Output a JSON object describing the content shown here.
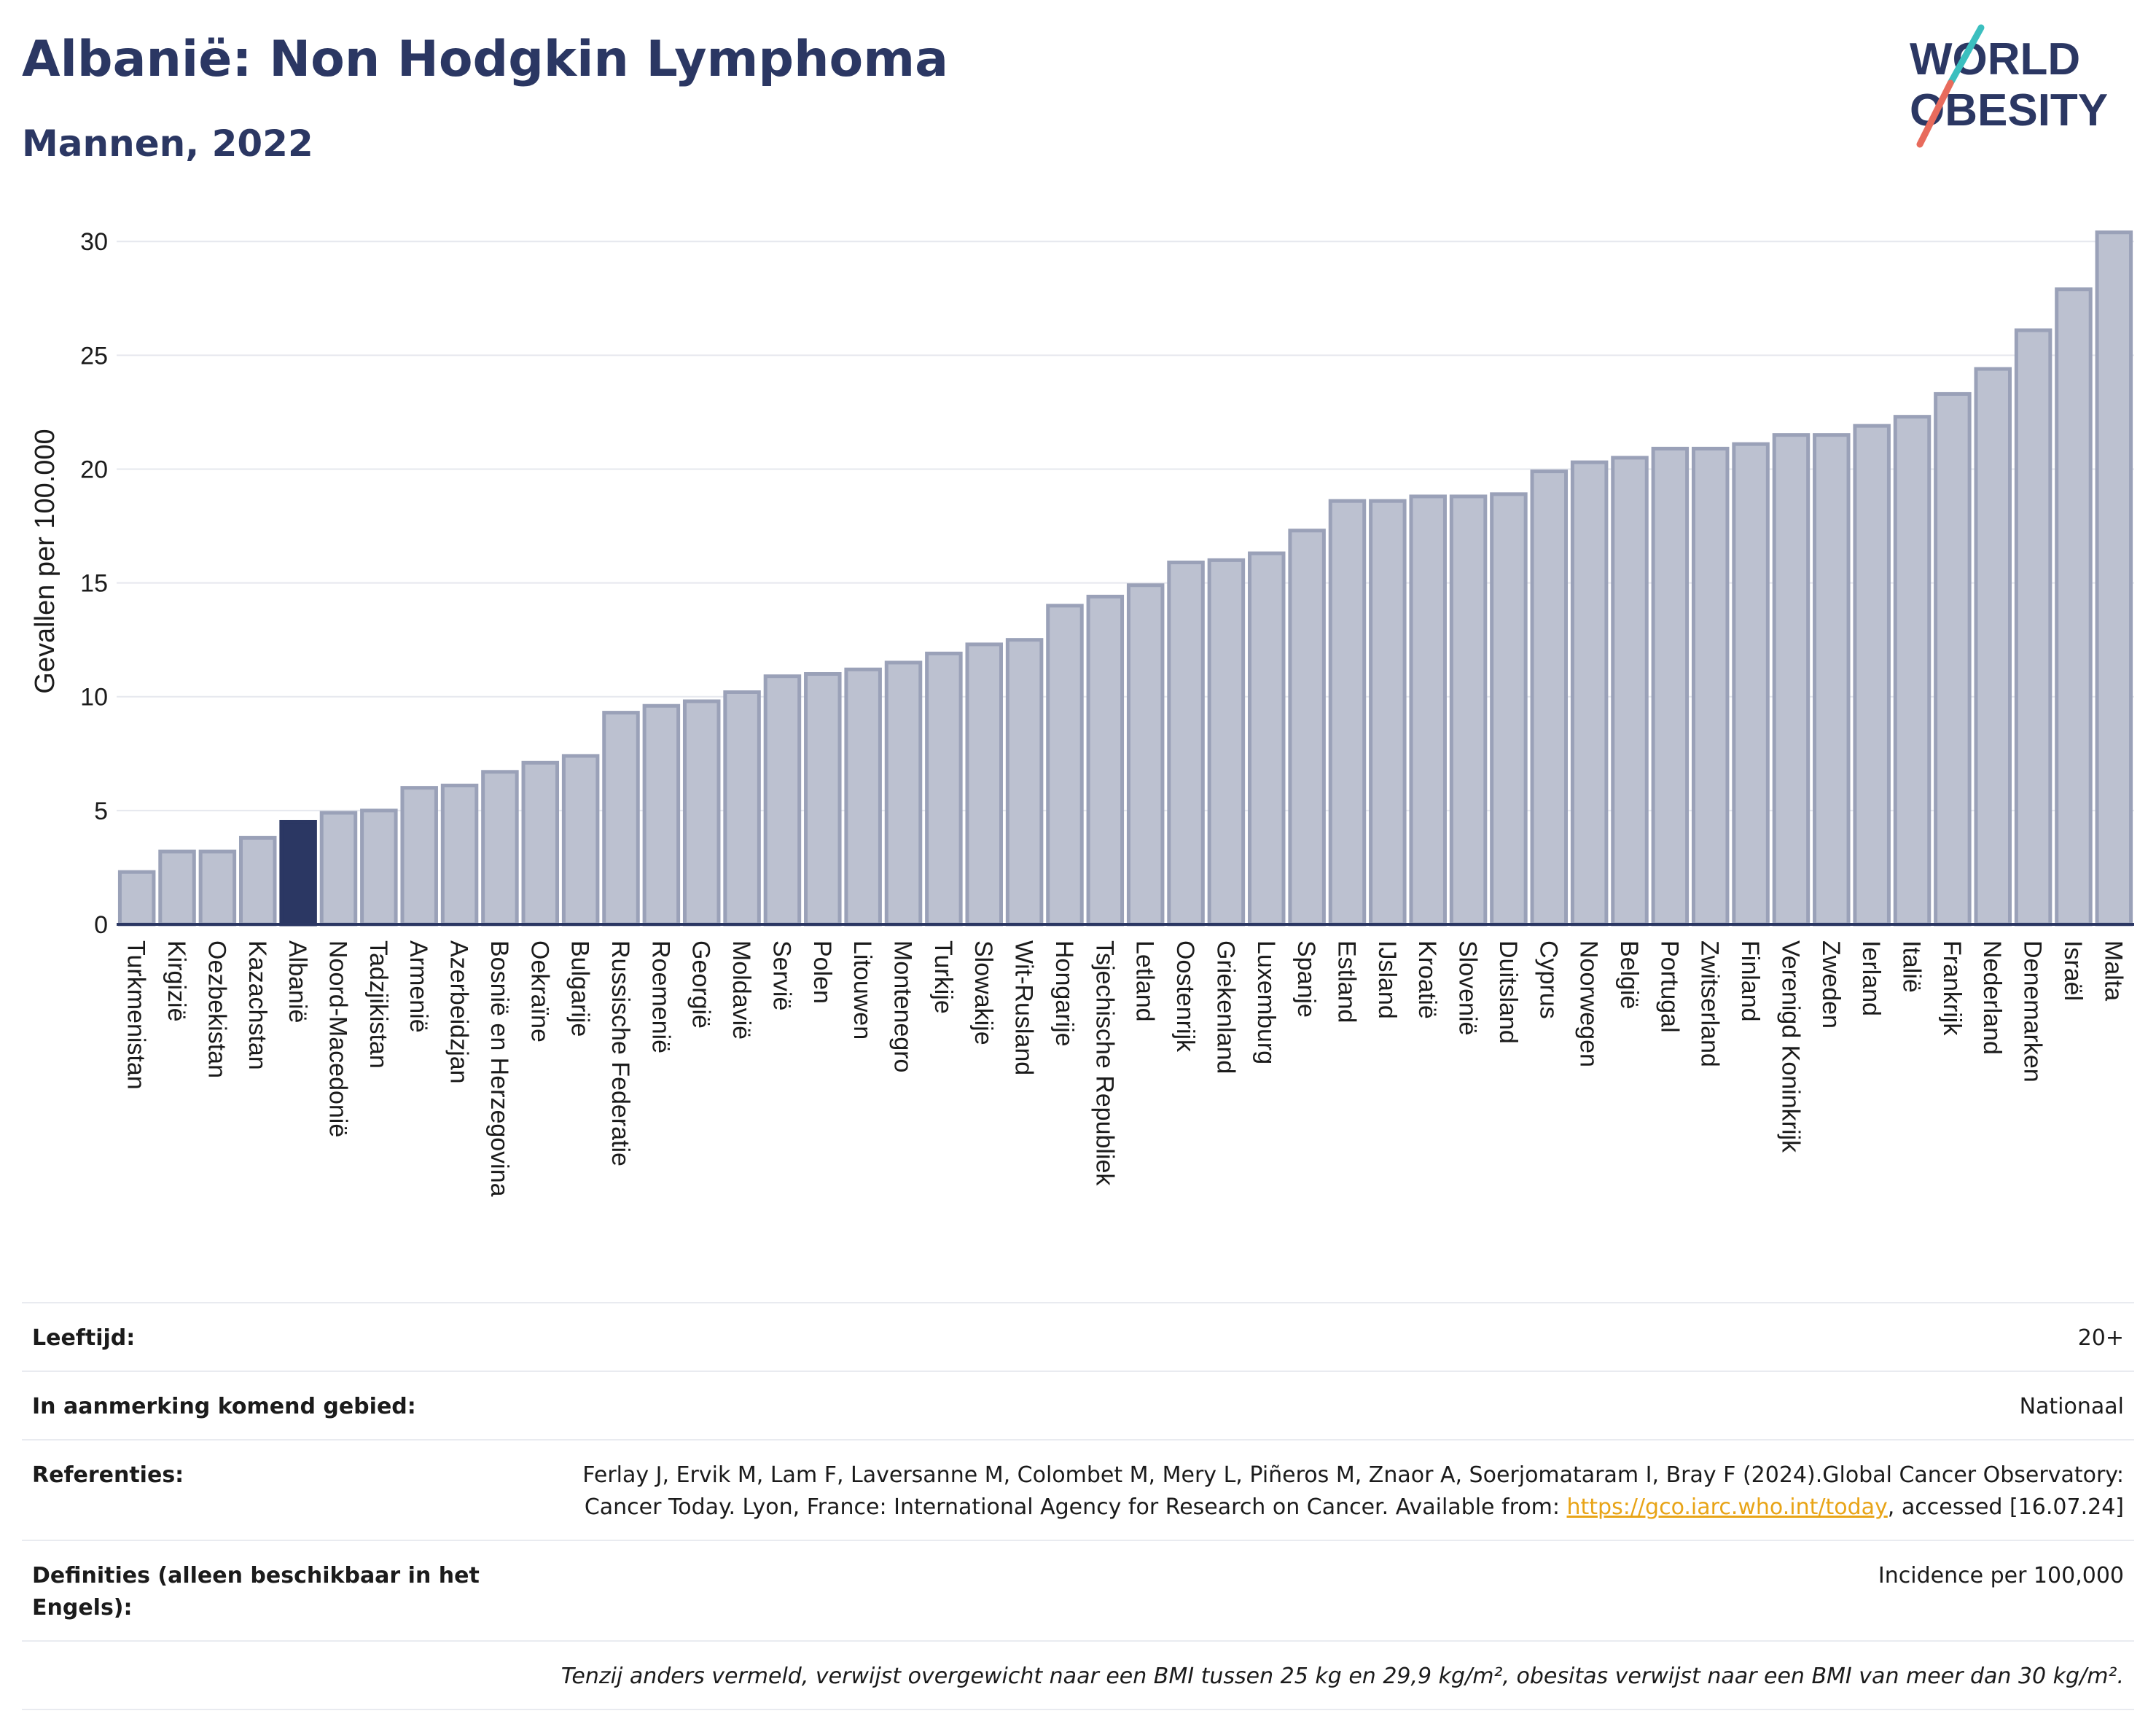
{
  "title": "Albanië: Non Hodgkin Lymphoma",
  "subtitle": "Mannen, 2022",
  "logo": {
    "line1": "WORLD",
    "line2": "OBESITY"
  },
  "colors": {
    "bar": "#bcc1d0",
    "bar_stroke": "#9aa1b8",
    "highlight": "#2b3763",
    "axis": "#2b3763",
    "grid": "#e6e8ee"
  },
  "chart_data": {
    "type": "bar",
    "title": "Albanië: Non Hodgkin Lymphoma",
    "subtitle": "Mannen, 2022",
    "ylabel": "Gevallen per 100.000",
    "xlabel": "",
    "ylim": [
      0,
      31
    ],
    "yticks": [
      0,
      5,
      10,
      15,
      20,
      25,
      30
    ],
    "grid": true,
    "highlight": "Albanië",
    "categories": [
      "Turkmenistan",
      "Kirgizië",
      "Oezbekistan",
      "Kazachstan",
      "Albanië",
      "Noord-Macedonië",
      "Tadzjikistan",
      "Armenië",
      "Azerbeidzjan",
      "Bosnië en Herzegovina",
      "Oekraïne",
      "Bulgarije",
      "Russische Federatie",
      "Roemenië",
      "Georgië",
      "Moldavië",
      "Servië",
      "Polen",
      "Litouwen",
      "Montenegro",
      "Turkije",
      "Slowakije",
      "Wit-Rusland",
      "Hongarije",
      "Tsjechische Republiek",
      "Letland",
      "Oostenrijk",
      "Griekenland",
      "Luxemburg",
      "Spanje",
      "Estland",
      "IJsland",
      "Kroatië",
      "Slovenië",
      "Duitsland",
      "Cyprus",
      "Noorwegen",
      "België",
      "Portugal",
      "Zwitserland",
      "Finland",
      "Verenigd Koninkrijk",
      "Zweden",
      "Ierland",
      "Italië",
      "Frankrijk",
      "Nederland",
      "Denemarken",
      "Israël",
      "Malta"
    ],
    "values": [
      2.3,
      3.2,
      3.2,
      3.8,
      4.5,
      4.9,
      5.0,
      6.0,
      6.1,
      6.7,
      7.1,
      7.4,
      9.3,
      9.6,
      9.8,
      10.2,
      10.9,
      11.0,
      11.2,
      11.5,
      11.9,
      12.3,
      12.5,
      14.0,
      14.4,
      14.9,
      15.9,
      16.0,
      16.3,
      17.3,
      18.6,
      18.6,
      18.8,
      18.8,
      18.9,
      19.9,
      20.3,
      20.5,
      20.9,
      20.9,
      21.1,
      21.5,
      21.5,
      21.9,
      22.3,
      23.3,
      24.4,
      26.1,
      27.9,
      30.4
    ]
  },
  "info": {
    "age_label": "Leeftijd:",
    "age_value": "20+",
    "area_label": "In aanmerking komend gebied:",
    "area_value": "Nationaal",
    "refs_label": "Referenties:",
    "refs_text": "Ferlay J, Ervik M, Lam F, Laversanne M, Colombet M, Mery L, Piñeros M, Znaor A, Soerjomataram I, Bray F (2024).Global Cancer Observatory: Cancer Today. Lyon, France: International Agency for Research on Cancer. Available from: ",
    "refs_link": "https://gco.iarc.who.int/today",
    "refs_tail": ", accessed [16.07.24]",
    "def_label": "Definities (alleen beschikbaar in het Engels):",
    "def_value": "Incidence per 100,000",
    "footnote": "Tenzij anders vermeld, verwijst overgewicht naar een BMI tussen 25 kg en 29,9 kg/m², obesitas verwijst naar een BMI van meer dan 30 kg/m²."
  }
}
